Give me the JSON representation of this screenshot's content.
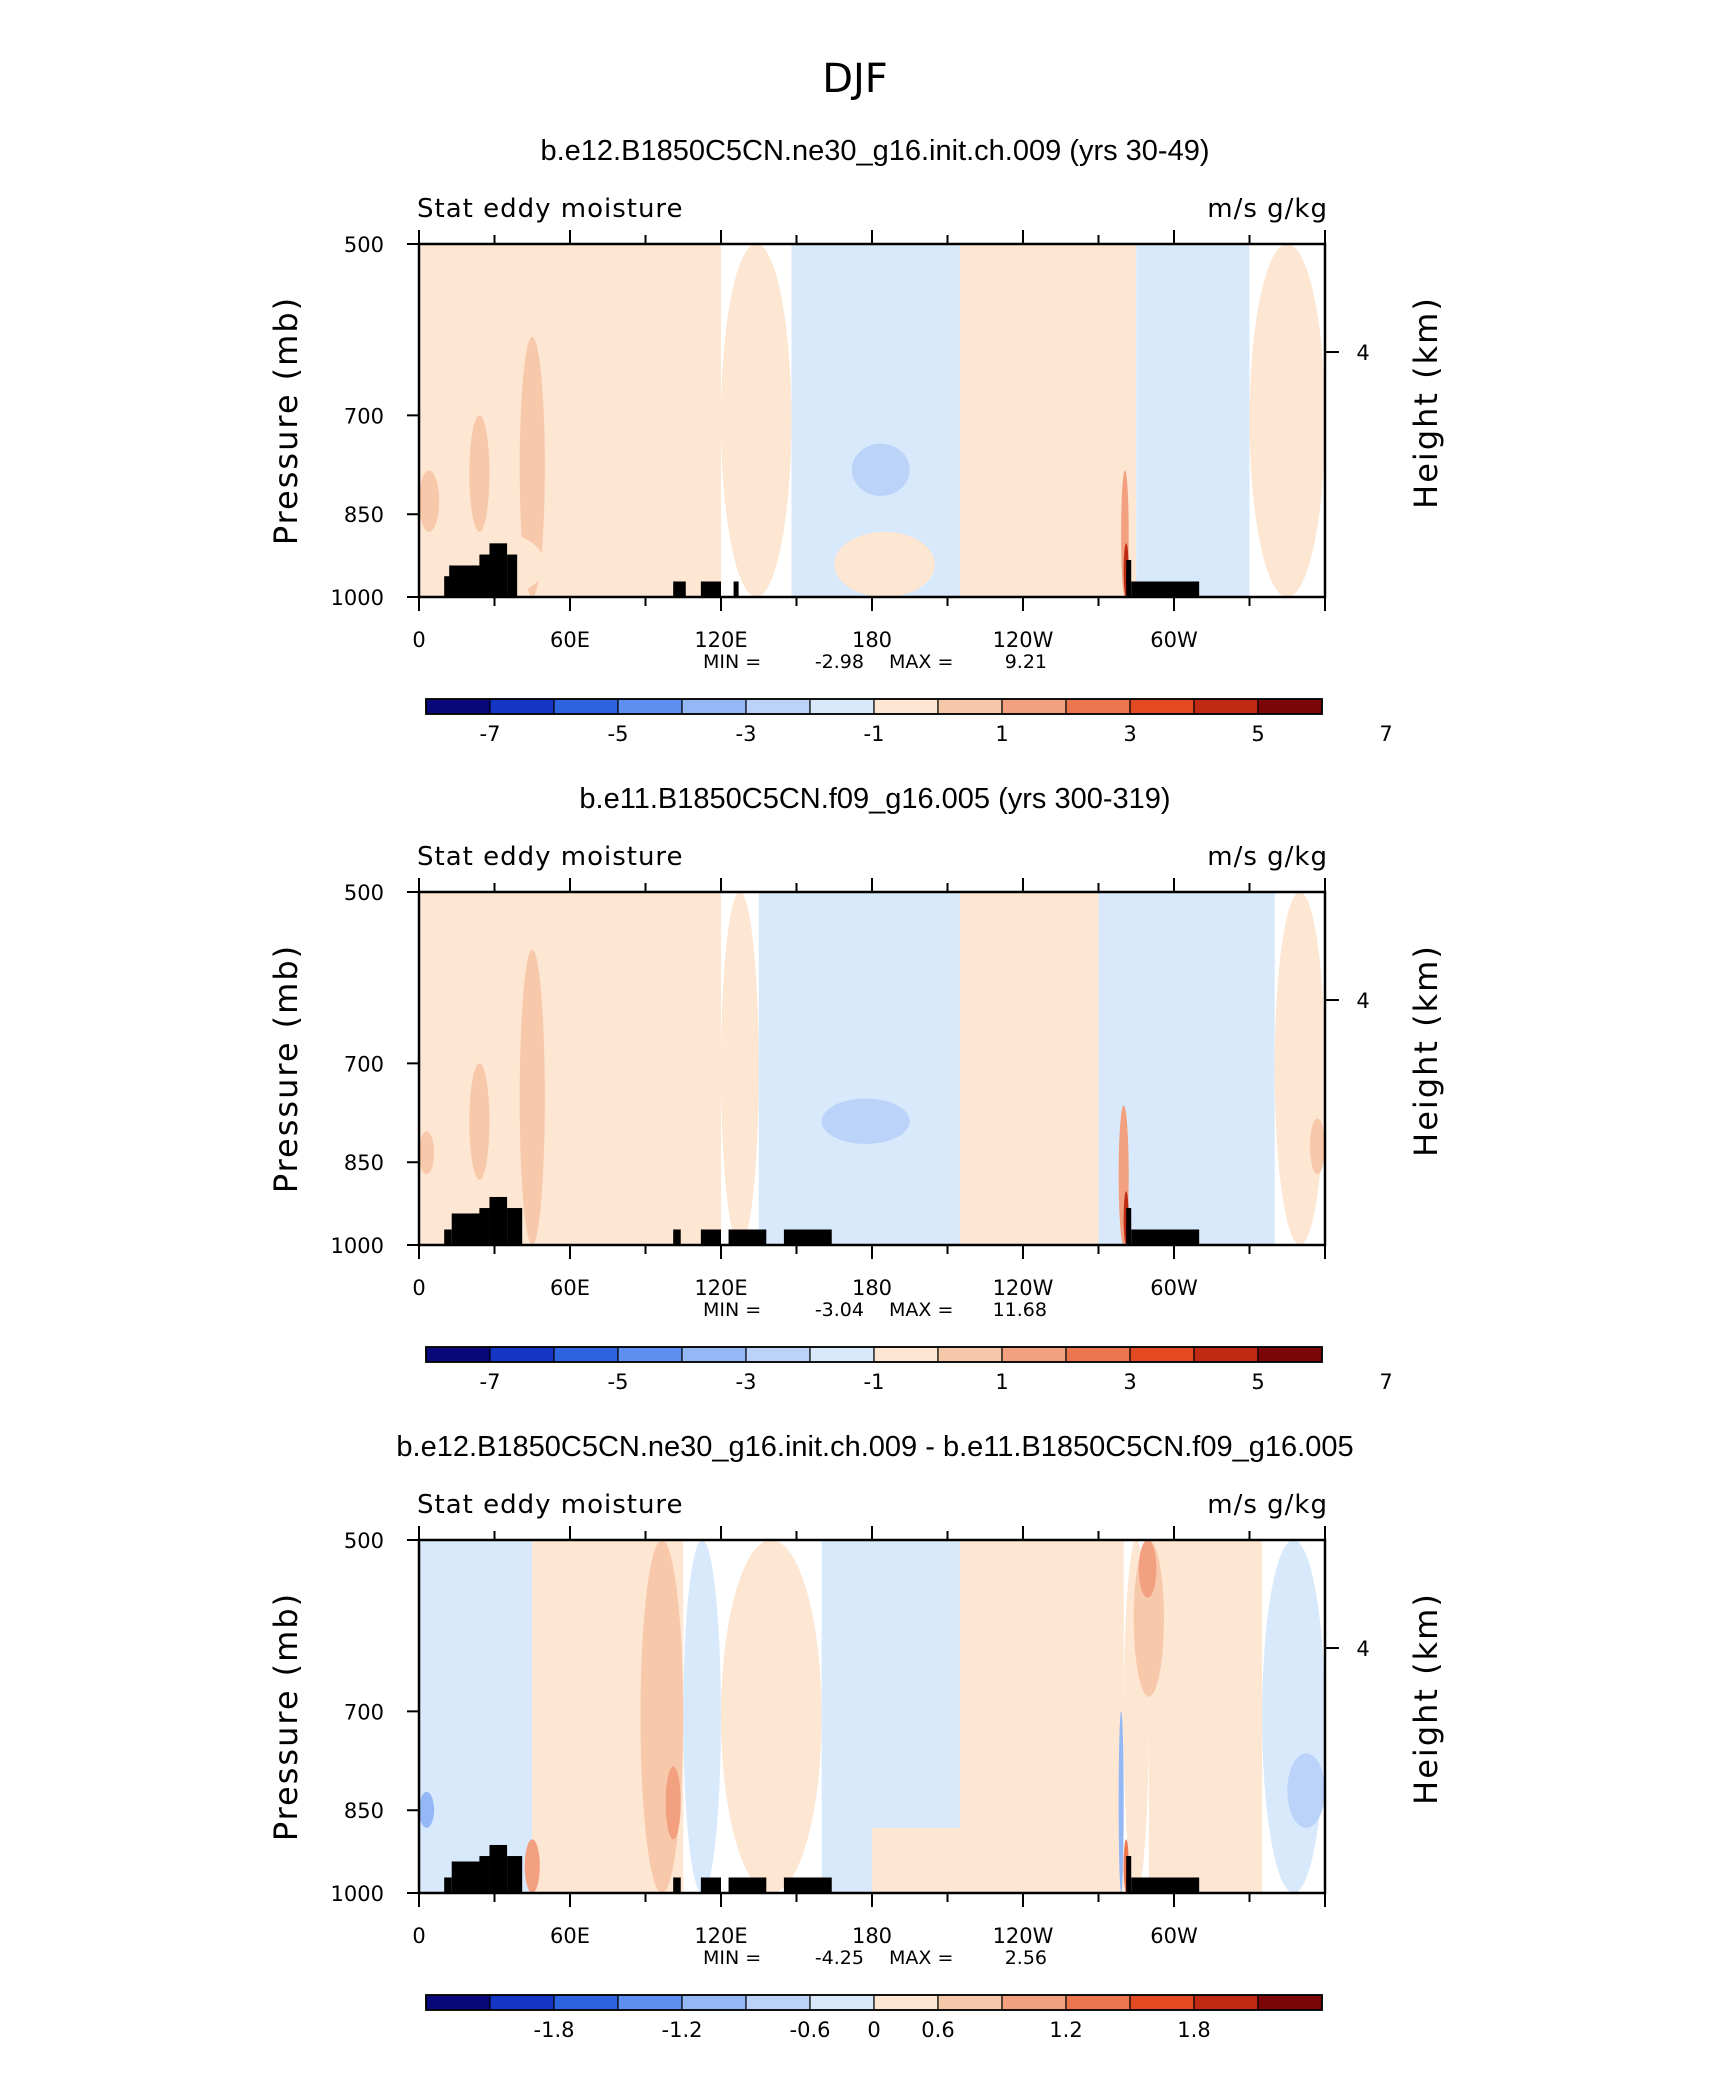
{
  "figure": {
    "title": "DJF",
    "colors": {
      "land": "#000000",
      "frame": "#000000",
      "palette_neg": [
        "#08087a",
        "#1535c4",
        "#2e63e0",
        "#5e8ff0",
        "#94b7f6",
        "#bcd3f9",
        "#d9e9fc"
      ],
      "palette_pos": [
        "#fde6d2",
        "#f8c8aa",
        "#f2a07f",
        "#eb7650",
        "#e44a22",
        "#bf2a12",
        "#7c0607"
      ]
    }
  },
  "chart_data": [
    {
      "type": "heatmap",
      "title": "b.e12.B1850C5CN.ne30_g16.init.ch.009 (yrs 30-49)",
      "left_label": "Stat eddy moisture",
      "right_label": "m/s g/kg",
      "ylabel": "Pressure (mb)",
      "ylabel_right": "Height (km)",
      "x_ticks": [
        "0",
        "60E",
        "120E",
        "180",
        "120W",
        "60W"
      ],
      "y_ticks": [
        "500",
        "700",
        "850",
        "1000"
      ],
      "y_right_ticks": [
        "4"
      ],
      "min_label": "MIN =",
      "min": "-2.98",
      "max_label": "MAX =",
      "max": "9.21",
      "colorbar_ticks": [
        "-7",
        "-5",
        "-3",
        "-1",
        "1",
        "3",
        "5",
        "7"
      ],
      "cells": [
        {
          "lon": [
            0,
            120
          ],
          "p": [
            500,
            1000
          ],
          "level": 1
        },
        {
          "lon": [
            120,
            148
          ],
          "p": [
            500,
            1000
          ],
          "level": 1
        },
        {
          "lon": [
            148,
            215
          ],
          "p": [
            500,
            1000
          ],
          "level": -1
        },
        {
          "lon": [
            215,
            285
          ],
          "p": [
            500,
            1000
          ],
          "level": 1
        },
        {
          "lon": [
            285,
            330
          ],
          "p": [
            500,
            1000
          ],
          "level": -1
        },
        {
          "lon": [
            330,
            360
          ],
          "p": [
            500,
            1000
          ],
          "level": 1
        },
        {
          "lon": [
            240,
            272
          ],
          "p": [
            500,
            620
          ],
          "level": 1
        },
        {
          "lon": [
            165,
            205
          ],
          "p": [
            880,
            1000
          ],
          "level": 1
        },
        {
          "lon": [
            172,
            195
          ],
          "p": [
            740,
            820
          ],
          "level": -2
        },
        {
          "lon": [
            40,
            50
          ],
          "p": [
            600,
            1000
          ],
          "level": 2
        },
        {
          "lon": [
            20,
            28
          ],
          "p": [
            700,
            880
          ],
          "level": 2
        },
        {
          "lon": [
            0,
            8
          ],
          "p": [
            780,
            880
          ],
          "level": 2
        },
        {
          "lon": [
            10,
            50
          ],
          "p": [
            880,
            1000
          ],
          "level": 1
        },
        {
          "lon": [
            279,
            282
          ],
          "p": [
            780,
            1000
          ],
          "level": 3
        },
        {
          "lon": [
            280,
            282
          ],
          "p": [
            900,
            1000
          ],
          "level": 6
        },
        {
          "lon": [
            281,
            282
          ],
          "p": [
            940,
            1000
          ],
          "level": 7
        }
      ],
      "land": [
        {
          "lon": [
            10,
            15
          ],
          "p": [
            960,
            1000
          ]
        },
        {
          "lon": [
            12,
            25
          ],
          "p": [
            940,
            1000
          ]
        },
        {
          "lon": [
            24,
            30
          ],
          "p": [
            920,
            1000
          ]
        },
        {
          "lon": [
            28,
            35
          ],
          "p": [
            900,
            1000
          ]
        },
        {
          "lon": [
            35,
            39
          ],
          "p": [
            920,
            1000
          ]
        },
        {
          "lon": [
            101,
            106
          ],
          "p": [
            970,
            1000
          ]
        },
        {
          "lon": [
            112,
            120
          ],
          "p": [
            970,
            1000
          ]
        },
        {
          "lon": [
            125,
            127
          ],
          "p": [
            970,
            1000
          ]
        },
        {
          "lon": [
            281,
            283
          ],
          "p": [
            930,
            1000
          ]
        },
        {
          "lon": [
            283,
            310
          ],
          "p": [
            970,
            1000
          ]
        }
      ]
    },
    {
      "type": "heatmap",
      "title": "b.e11.B1850C5CN.f09_g16.005 (yrs 300-319)",
      "left_label": "Stat eddy moisture",
      "right_label": "m/s g/kg",
      "ylabel": "Pressure (mb)",
      "ylabel_right": "Height (km)",
      "x_ticks": [
        "0",
        "60E",
        "120E",
        "180",
        "120W",
        "60W"
      ],
      "y_ticks": [
        "500",
        "700",
        "850",
        "1000"
      ],
      "y_right_ticks": [
        "4"
      ],
      "min_label": "MIN =",
      "min": "-3.04",
      "max_label": "MAX =",
      "max": "11.68",
      "colorbar_ticks": [
        "-7",
        "-5",
        "-3",
        "-1",
        "1",
        "3",
        "5",
        "7"
      ],
      "cells": [
        {
          "lon": [
            0,
            120
          ],
          "p": [
            500,
            1000
          ],
          "level": 1
        },
        {
          "lon": [
            120,
            135
          ],
          "p": [
            500,
            1000
          ],
          "level": 1
        },
        {
          "lon": [
            135,
            215
          ],
          "p": [
            500,
            1000
          ],
          "level": -1
        },
        {
          "lon": [
            215,
            270
          ],
          "p": [
            500,
            1000
          ],
          "level": 1
        },
        {
          "lon": [
            270,
            340
          ],
          "p": [
            500,
            1000
          ],
          "level": -1
        },
        {
          "lon": [
            340,
            360
          ],
          "p": [
            500,
            1000
          ],
          "level": 1
        },
        {
          "lon": [
            215,
            255
          ],
          "p": [
            500,
            640
          ],
          "level": 1
        },
        {
          "lon": [
            215,
            255
          ],
          "p": [
            900,
            1000
          ],
          "level": 1
        },
        {
          "lon": [
            160,
            195
          ],
          "p": [
            750,
            820
          ],
          "level": -2
        },
        {
          "lon": [
            40,
            50
          ],
          "p": [
            560,
            1000
          ],
          "level": 2
        },
        {
          "lon": [
            20,
            28
          ],
          "p": [
            700,
            880
          ],
          "level": 2
        },
        {
          "lon": [
            0,
            6
          ],
          "p": [
            800,
            870
          ],
          "level": 2
        },
        {
          "lon": [
            354,
            360
          ],
          "p": [
            780,
            870
          ],
          "level": 2
        },
        {
          "lon": [
            278,
            282
          ],
          "p": [
            760,
            1000
          ],
          "level": 3
        },
        {
          "lon": [
            280,
            282
          ],
          "p": [
            900,
            1000
          ],
          "level": 6
        },
        {
          "lon": [
            281,
            282
          ],
          "p": [
            940,
            1000
          ],
          "level": 7
        }
      ],
      "land": [
        {
          "lon": [
            10,
            13
          ],
          "p": [
            970,
            1000
          ]
        },
        {
          "lon": [
            13,
            25
          ],
          "p": [
            940,
            1000
          ]
        },
        {
          "lon": [
            24,
            28
          ],
          "p": [
            930,
            1000
          ]
        },
        {
          "lon": [
            28,
            35
          ],
          "p": [
            910,
            1000
          ]
        },
        {
          "lon": [
            35,
            41
          ],
          "p": [
            930,
            1000
          ]
        },
        {
          "lon": [
            101,
            104
          ],
          "p": [
            970,
            1000
          ]
        },
        {
          "lon": [
            112,
            120
          ],
          "p": [
            970,
            1000
          ]
        },
        {
          "lon": [
            123,
            138
          ],
          "p": [
            970,
            1000
          ]
        },
        {
          "lon": [
            145,
            164
          ],
          "p": [
            970,
            1000
          ]
        },
        {
          "lon": [
            281,
            283
          ],
          "p": [
            930,
            1000
          ]
        },
        {
          "lon": [
            283,
            310
          ],
          "p": [
            970,
            1000
          ]
        }
      ]
    },
    {
      "type": "heatmap",
      "title": "b.e12.B1850C5CN.ne30_g16.init.ch.009 - b.e11.B1850C5CN.f09_g16.005",
      "left_label": "Stat eddy moisture",
      "right_label": "m/s g/kg",
      "ylabel": "Pressure (mb)",
      "ylabel_right": "Height (km)",
      "x_ticks": [
        "0",
        "60E",
        "120E",
        "180",
        "120W",
        "60W"
      ],
      "y_ticks": [
        "500",
        "700",
        "850",
        "1000"
      ],
      "y_right_ticks": [
        "4"
      ],
      "min_label": "MIN =",
      "min": "-4.25",
      "max_label": "MAX =",
      "max": "2.56",
      "colorbar_ticks": [
        "-1.8",
        "-1.2",
        "-0.6",
        "0",
        "0.6",
        "1.2",
        "1.8"
      ],
      "cells": [
        {
          "lon": [
            0,
            45
          ],
          "p": [
            500,
            1000
          ],
          "level": -1
        },
        {
          "lon": [
            45,
            105
          ],
          "p": [
            500,
            1000
          ],
          "level": 1
        },
        {
          "lon": [
            105,
            120
          ],
          "p": [
            500,
            1000
          ],
          "level": -1
        },
        {
          "lon": [
            120,
            160
          ],
          "p": [
            500,
            1000
          ],
          "level": 1
        },
        {
          "lon": [
            160,
            215
          ],
          "p": [
            500,
            1000
          ],
          "level": -1
        },
        {
          "lon": [
            215,
            280
          ],
          "p": [
            500,
            1000
          ],
          "level": 1
        },
        {
          "lon": [
            280,
            290
          ],
          "p": [
            500,
            1000
          ],
          "level": 1
        },
        {
          "lon": [
            290,
            335
          ],
          "p": [
            500,
            1000
          ],
          "level": 1
        },
        {
          "lon": [
            335,
            360
          ],
          "p": [
            500,
            1000
          ],
          "level": -1
        },
        {
          "lon": [
            180,
            240
          ],
          "p": [
            880,
            1000
          ],
          "level": 1
        },
        {
          "lon": [
            88,
            105
          ],
          "p": [
            500,
            1000
          ],
          "level": 2
        },
        {
          "lon": [
            98,
            104
          ],
          "p": [
            780,
            900
          ],
          "level": 3
        },
        {
          "lon": [
            284,
            296
          ],
          "p": [
            500,
            680
          ],
          "level": 2
        },
        {
          "lon": [
            286,
            293
          ],
          "p": [
            500,
            560
          ],
          "level": 3
        },
        {
          "lon": [
            345,
            360
          ],
          "p": [
            760,
            880
          ],
          "level": -2
        },
        {
          "lon": [
            0,
            6
          ],
          "p": [
            820,
            880
          ],
          "level": -3
        },
        {
          "lon": [
            278,
            280
          ],
          "p": [
            700,
            1000
          ],
          "level": -3
        },
        {
          "lon": [
            280,
            282
          ],
          "p": [
            900,
            1000
          ],
          "level": 4
        },
        {
          "lon": [
            281,
            282
          ],
          "p": [
            950,
            1000
          ],
          "level": 7
        },
        {
          "lon": [
            42,
            48
          ],
          "p": [
            900,
            1000
          ],
          "level": 3
        }
      ],
      "land": [
        {
          "lon": [
            10,
            13
          ],
          "p": [
            970,
            1000
          ]
        },
        {
          "lon": [
            13,
            25
          ],
          "p": [
            940,
            1000
          ]
        },
        {
          "lon": [
            24,
            28
          ],
          "p": [
            930,
            1000
          ]
        },
        {
          "lon": [
            28,
            35
          ],
          "p": [
            910,
            1000
          ]
        },
        {
          "lon": [
            35,
            41
          ],
          "p": [
            930,
            1000
          ]
        },
        {
          "lon": [
            101,
            104
          ],
          "p": [
            970,
            1000
          ]
        },
        {
          "lon": [
            112,
            120
          ],
          "p": [
            970,
            1000
          ]
        },
        {
          "lon": [
            123,
            138
          ],
          "p": [
            970,
            1000
          ]
        },
        {
          "lon": [
            145,
            164
          ],
          "p": [
            970,
            1000
          ]
        },
        {
          "lon": [
            281,
            283
          ],
          "p": [
            930,
            1000
          ]
        },
        {
          "lon": [
            283,
            310
          ],
          "p": [
            970,
            1000
          ]
        }
      ]
    }
  ]
}
